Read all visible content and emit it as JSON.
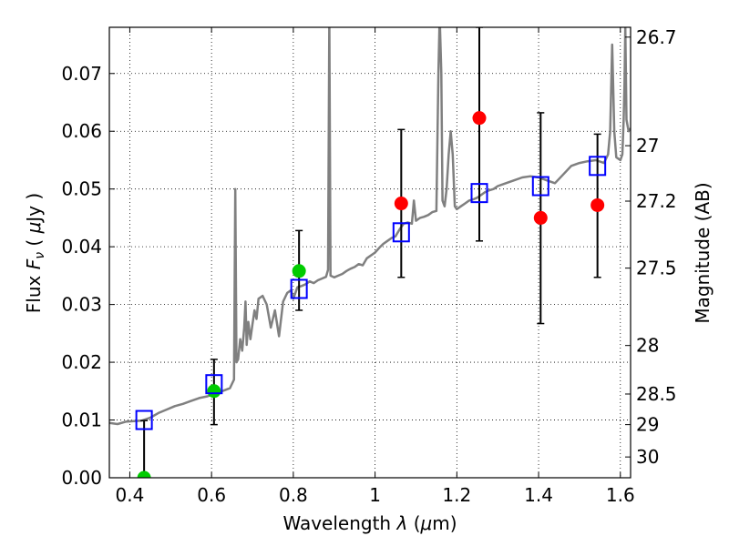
{
  "chart_data": {
    "type": "scatter",
    "xlabel_text": "Wavelength",
    "xlabel_symbol": "λ",
    "xlabel_unit_open": "(",
    "xlabel_mu": "μ",
    "xlabel_unit_close": "m)",
    "ylabel_text": "Flux",
    "ylabel_symbol_F": "F",
    "ylabel_symbol_sub": "ν",
    "ylabel_unit_open": "(",
    "ylabel_mu": "μ",
    "ylabel_unit_close": "Jy )",
    "y2label": "Magnitude (AB)",
    "xlim": [
      0.35,
      1.625
    ],
    "ylim": [
      0.0,
      0.078
    ],
    "grid": true,
    "xticks": [
      {
        "value": 0.4,
        "label": "0.4"
      },
      {
        "value": 0.6,
        "label": "0.6"
      },
      {
        "value": 0.8,
        "label": "0.8"
      },
      {
        "value": 1.0,
        "label": "1"
      },
      {
        "value": 1.2,
        "label": "1.2"
      },
      {
        "value": 1.4,
        "label": "1.4"
      },
      {
        "value": 1.6,
        "label": "1.6"
      }
    ],
    "yticks": [
      {
        "value": 0.0,
        "label": "0.00"
      },
      {
        "value": 0.01,
        "label": "0.01"
      },
      {
        "value": 0.02,
        "label": "0.02"
      },
      {
        "value": 0.03,
        "label": "0.03"
      },
      {
        "value": 0.04,
        "label": "0.04"
      },
      {
        "value": 0.05,
        "label": "0.05"
      },
      {
        "value": 0.06,
        "label": "0.06"
      },
      {
        "value": 0.07,
        "label": "0.07"
      }
    ],
    "y2ticks": [
      {
        "flux": 0.0763,
        "label": "26.7"
      },
      {
        "flux": 0.0575,
        "label": "27"
      },
      {
        "flux": 0.0479,
        "label": "27.2"
      },
      {
        "flux": 0.0363,
        "label": "27.5"
      },
      {
        "flux": 0.0229,
        "label": "28"
      },
      {
        "flux": 0.0145,
        "label": "28.5"
      },
      {
        "flux": 0.0092,
        "label": "29"
      },
      {
        "flux": 0.0036,
        "label": "30"
      }
    ],
    "model_spectrum": {
      "name": "model SED",
      "color": "#808080",
      "points": [
        [
          0.35,
          0.0095
        ],
        [
          0.37,
          0.0093
        ],
        [
          0.39,
          0.0097
        ],
        [
          0.41,
          0.0098
        ],
        [
          0.43,
          0.0099
        ],
        [
          0.45,
          0.0104
        ],
        [
          0.47,
          0.0112
        ],
        [
          0.49,
          0.0118
        ],
        [
          0.51,
          0.0124
        ],
        [
          0.53,
          0.0128
        ],
        [
          0.55,
          0.0133
        ],
        [
          0.57,
          0.0138
        ],
        [
          0.59,
          0.0141
        ],
        [
          0.61,
          0.0146
        ],
        [
          0.63,
          0.0151
        ],
        [
          0.645,
          0.0155
        ],
        [
          0.655,
          0.017
        ],
        [
          0.658,
          0.05
        ],
        [
          0.661,
          0.02
        ],
        [
          0.665,
          0.0205
        ],
        [
          0.67,
          0.024
        ],
        [
          0.675,
          0.022
        ],
        [
          0.68,
          0.026
        ],
        [
          0.683,
          0.0305
        ],
        [
          0.686,
          0.023
        ],
        [
          0.69,
          0.027
        ],
        [
          0.695,
          0.024
        ],
        [
          0.7,
          0.0265
        ],
        [
          0.705,
          0.029
        ],
        [
          0.71,
          0.0275
        ],
        [
          0.715,
          0.031
        ],
        [
          0.725,
          0.0315
        ],
        [
          0.735,
          0.03
        ],
        [
          0.745,
          0.026
        ],
        [
          0.755,
          0.029
        ],
        [
          0.765,
          0.0245
        ],
        [
          0.775,
          0.0305
        ],
        [
          0.785,
          0.032
        ],
        [
          0.795,
          0.0325
        ],
        [
          0.8,
          0.031
        ],
        [
          0.81,
          0.033
        ],
        [
          0.82,
          0.0332
        ],
        [
          0.83,
          0.0335
        ],
        [
          0.84,
          0.034
        ],
        [
          0.85,
          0.0337
        ],
        [
          0.86,
          0.0342
        ],
        [
          0.87,
          0.0345
        ],
        [
          0.88,
          0.0348
        ],
        [
          0.885,
          0.036
        ],
        [
          0.888,
          0.08
        ],
        [
          0.891,
          0.035
        ],
        [
          0.9,
          0.0347
        ],
        [
          0.91,
          0.035
        ],
        [
          0.92,
          0.0353
        ],
        [
          0.93,
          0.0358
        ],
        [
          0.94,
          0.0362
        ],
        [
          0.95,
          0.0365
        ],
        [
          0.96,
          0.037
        ],
        [
          0.97,
          0.0368
        ],
        [
          0.98,
          0.038
        ],
        [
          0.99,
          0.0385
        ],
        [
          1.0,
          0.039
        ],
        [
          1.01,
          0.0398
        ],
        [
          1.02,
          0.0405
        ],
        [
          1.03,
          0.041
        ],
        [
          1.04,
          0.0415
        ],
        [
          1.05,
          0.0418
        ],
        [
          1.06,
          0.043
        ],
        [
          1.07,
          0.044
        ],
        [
          1.08,
          0.0442
        ],
        [
          1.09,
          0.044
        ],
        [
          1.095,
          0.048
        ],
        [
          1.1,
          0.0445
        ],
        [
          1.11,
          0.045
        ],
        [
          1.12,
          0.0452
        ],
        [
          1.13,
          0.0455
        ],
        [
          1.14,
          0.046
        ],
        [
          1.15,
          0.0462
        ],
        [
          1.155,
          0.07
        ],
        [
          1.158,
          0.08
        ],
        [
          1.162,
          0.07
        ],
        [
          1.165,
          0.048
        ],
        [
          1.17,
          0.047
        ],
        [
          1.175,
          0.05
        ],
        [
          1.18,
          0.056
        ],
        [
          1.185,
          0.06
        ],
        [
          1.19,
          0.056
        ],
        [
          1.195,
          0.047
        ],
        [
          1.2,
          0.0465
        ],
        [
          1.21,
          0.047
        ],
        [
          1.22,
          0.0475
        ],
        [
          1.23,
          0.048
        ],
        [
          1.24,
          0.0482
        ],
        [
          1.25,
          0.0485
        ],
        [
          1.26,
          0.049
        ],
        [
          1.27,
          0.0495
        ],
        [
          1.28,
          0.0498
        ],
        [
          1.29,
          0.05
        ],
        [
          1.3,
          0.0505
        ],
        [
          1.32,
          0.051
        ],
        [
          1.34,
          0.0515
        ],
        [
          1.36,
          0.052
        ],
        [
          1.38,
          0.0522
        ],
        [
          1.4,
          0.052
        ],
        [
          1.42,
          0.0515
        ],
        [
          1.44,
          0.051
        ],
        [
          1.46,
          0.0525
        ],
        [
          1.48,
          0.054
        ],
        [
          1.5,
          0.0545
        ],
        [
          1.52,
          0.0548
        ],
        [
          1.54,
          0.055
        ],
        [
          1.56,
          0.0545
        ],
        [
          1.57,
          0.056
        ],
        [
          1.575,
          0.06
        ],
        [
          1.58,
          0.075
        ],
        [
          1.585,
          0.06
        ],
        [
          1.59,
          0.0555
        ],
        [
          1.6,
          0.055
        ],
        [
          1.605,
          0.056
        ],
        [
          1.608,
          0.062
        ],
        [
          1.61,
          0.068
        ],
        [
          1.612,
          0.078
        ],
        [
          1.615,
          0.062
        ],
        [
          1.62,
          0.06
        ],
        [
          1.625,
          0.0605
        ]
      ]
    },
    "observed": [
      {
        "x": 0.435,
        "y": 0.0,
        "color": "#00cc00",
        "err_low": 0.0,
        "err_high": 0.0099
      },
      {
        "x": 0.606,
        "y": 0.015,
        "color": "#00cc00",
        "err_low": 0.0092,
        "err_high": 0.0205
      },
      {
        "x": 0.814,
        "y": 0.0358,
        "color": "#00cc00",
        "err_low": 0.029,
        "err_high": 0.0428
      },
      {
        "x": 1.064,
        "y": 0.0475,
        "color": "#ff0000",
        "err_low": 0.0347,
        "err_high": 0.0603
      },
      {
        "x": 1.255,
        "y": 0.0623,
        "color": "#ff0000",
        "err_low": 0.041,
        "err_high": 0.078
      },
      {
        "x": 1.405,
        "y": 0.045,
        "color": "#ff0000",
        "err_low": 0.0267,
        "err_high": 0.0632
      },
      {
        "x": 1.544,
        "y": 0.0472,
        "color": "#ff0000",
        "err_low": 0.0347,
        "err_high": 0.0595
      }
    ],
    "model_photometry": {
      "color": "#0000ff",
      "points": [
        {
          "x": 0.435,
          "y": 0.01
        },
        {
          "x": 0.606,
          "y": 0.0162
        },
        {
          "x": 0.814,
          "y": 0.0327
        },
        {
          "x": 1.064,
          "y": 0.0425
        },
        {
          "x": 1.255,
          "y": 0.0493
        },
        {
          "x": 1.405,
          "y": 0.0505
        },
        {
          "x": 1.544,
          "y": 0.054
        }
      ]
    }
  }
}
